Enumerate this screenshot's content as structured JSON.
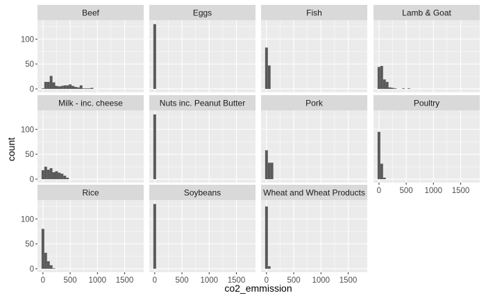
{
  "chart_data": {
    "type": "histogram",
    "xlabel": "co2_emmission",
    "ylabel": "count",
    "bin_width": 50,
    "xlim": [
      -100,
      1850
    ],
    "ylim": [
      -7,
      138
    ],
    "x_ticks": [
      0,
      500,
      1000,
      1500
    ],
    "x_tick_labels": [
      "0",
      "500",
      "1000",
      "1500"
    ],
    "y_ticks": [
      0,
      50,
      100
    ],
    "y_tick_labels": [
      "0",
      "50",
      "100"
    ],
    "grid": true,
    "legend": "none",
    "colors": {
      "bar": "#595959",
      "panel_bg": "#ebebeb",
      "strip_bg": "#d9d9d9",
      "grid": "#ffffff"
    },
    "facets": [
      {
        "name": "Beef",
        "bin_starts": [
          0,
          50,
          100,
          150,
          200,
          250,
          300,
          350,
          400,
          450,
          500,
          550,
          600,
          650,
          700,
          750,
          800,
          850,
          900
        ],
        "counts": [
          1,
          14,
          14,
          26,
          13,
          6,
          5,
          6,
          7,
          7,
          9,
          6,
          4,
          3,
          7,
          1,
          1,
          1,
          2
        ]
      },
      {
        "name": "Eggs",
        "bin_starts": [
          0
        ],
        "counts": [
          130
        ]
      },
      {
        "name": "Fish",
        "bin_starts": [
          0,
          50
        ],
        "counts": [
          83,
          47
        ]
      },
      {
        "name": "Lamb & Goat",
        "bin_starts": [
          0,
          50,
          100,
          150,
          200,
          250,
          300,
          350,
          400,
          450,
          500,
          550
        ],
        "counts": [
          44,
          46,
          19,
          14,
          3,
          2,
          1,
          0,
          0,
          1,
          0,
          1
        ]
      },
      {
        "name": "Milk - inc. cheese",
        "bin_starts": [
          0,
          50,
          100,
          150,
          200,
          250,
          300,
          350,
          400,
          450
        ],
        "counts": [
          18,
          25,
          19,
          22,
          14,
          16,
          13,
          11,
          7,
          3
        ]
      },
      {
        "name": "Nuts inc. Peanut Butter",
        "bin_starts": [
          0
        ],
        "counts": [
          130
        ]
      },
      {
        "name": "Pork",
        "bin_starts": [
          0,
          50,
          100
        ],
        "counts": [
          58,
          33,
          33
        ]
      },
      {
        "name": "Poultry",
        "bin_starts": [
          0,
          50,
          100
        ],
        "counts": [
          95,
          31,
          3
        ]
      },
      {
        "name": "Rice",
        "bin_starts": [
          0,
          50,
          100,
          150,
          200
        ],
        "counts": [
          80,
          32,
          15,
          7,
          1
        ]
      },
      {
        "name": "Soybeans",
        "bin_starts": [
          0
        ],
        "counts": [
          130
        ]
      },
      {
        "name": "Wheat and Wheat Products",
        "bin_starts": [
          0,
          50
        ],
        "counts": [
          125,
          5
        ]
      }
    ]
  }
}
